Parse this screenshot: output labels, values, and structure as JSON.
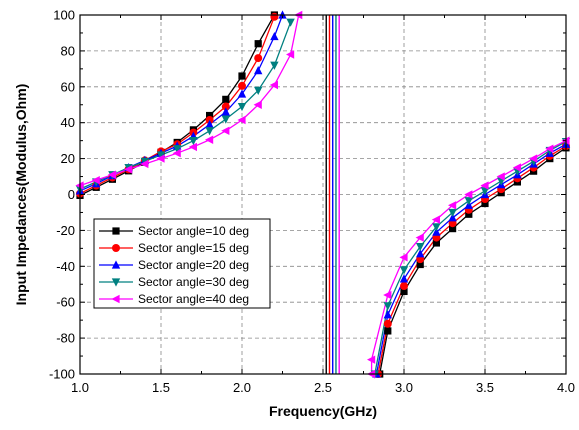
{
  "chart_data": {
    "type": "line",
    "xlabel": "Frequency(GHz)",
    "ylabel": "Input Impedances(Modulus,Ohm)",
    "xlim": [
      1.0,
      4.0
    ],
    "ylim": [
      -100,
      100
    ],
    "xticks": [
      1.0,
      1.5,
      2.0,
      2.5,
      3.0,
      3.5,
      4.0
    ],
    "xtick_labels": [
      "1.0",
      "1.5",
      "2.0",
      "2.5",
      "3.0",
      "3.5",
      "4.0"
    ],
    "yticks": [
      -100,
      -80,
      -60,
      -40,
      -20,
      0,
      20,
      40,
      60,
      80,
      100
    ],
    "ytick_labels": [
      "-100",
      "-80",
      "-60",
      "-40",
      "-20",
      "0",
      "20",
      "40",
      "60",
      "80",
      "100"
    ],
    "grid": "dashed",
    "legend_position": "lower-left",
    "series": [
      {
        "name": "Sector angle=10 deg",
        "color": "#000000",
        "marker": "square",
        "resonance_ghz": 2.52,
        "low_branch": [
          [
            1.0,
            -0.5
          ],
          [
            1.1,
            4
          ],
          [
            1.2,
            8.5
          ],
          [
            1.3,
            13.2
          ],
          [
            1.4,
            18
          ],
          [
            1.5,
            23.5
          ],
          [
            1.6,
            29
          ],
          [
            1.7,
            36
          ],
          [
            1.8,
            44
          ],
          [
            1.9,
            53
          ],
          [
            2.0,
            66
          ],
          [
            2.1,
            84
          ],
          [
            2.2,
            100
          ]
        ],
        "high_branch": [
          [
            2.85,
            -100
          ],
          [
            2.9,
            -76
          ],
          [
            3.0,
            -54
          ],
          [
            3.1,
            -39
          ],
          [
            3.2,
            -27
          ],
          [
            3.3,
            -19
          ],
          [
            3.4,
            -11
          ],
          [
            3.5,
            -5
          ],
          [
            3.6,
            1
          ],
          [
            3.7,
            7
          ],
          [
            3.8,
            13
          ],
          [
            3.9,
            20
          ],
          [
            4.0,
            26
          ]
        ]
      },
      {
        "name": "Sector angle=15 deg",
        "color": "#ff0000",
        "marker": "circle",
        "resonance_ghz": 2.54,
        "low_branch": [
          [
            1.0,
            0.5
          ],
          [
            1.1,
            5
          ],
          [
            1.2,
            9.5
          ],
          [
            1.3,
            14
          ],
          [
            1.4,
            19
          ],
          [
            1.5,
            24
          ],
          [
            1.6,
            28
          ],
          [
            1.7,
            34.5
          ],
          [
            1.8,
            41.5
          ],
          [
            1.9,
            49
          ],
          [
            2.0,
            60.5
          ],
          [
            2.1,
            76
          ],
          [
            2.2,
            99
          ]
        ],
        "high_branch": [
          [
            2.84,
            -100
          ],
          [
            2.9,
            -72
          ],
          [
            3.0,
            -51
          ],
          [
            3.1,
            -36
          ],
          [
            3.2,
            -24
          ],
          [
            3.3,
            -16
          ],
          [
            3.4,
            -8.5
          ],
          [
            3.5,
            -2.5
          ],
          [
            3.6,
            3
          ],
          [
            3.7,
            9
          ],
          [
            3.8,
            15
          ],
          [
            3.9,
            21.5
          ],
          [
            4.0,
            27
          ]
        ]
      },
      {
        "name": "Sector angle=20 deg",
        "color": "#0000ff",
        "marker": "triangle-up",
        "resonance_ghz": 2.56,
        "low_branch": [
          [
            1.0,
            2
          ],
          [
            1.1,
            6
          ],
          [
            1.2,
            10.5
          ],
          [
            1.3,
            15
          ],
          [
            1.4,
            19
          ],
          [
            1.5,
            23
          ],
          [
            1.6,
            27
          ],
          [
            1.7,
            32.5
          ],
          [
            1.8,
            39
          ],
          [
            1.9,
            46
          ],
          [
            2.0,
            56
          ],
          [
            2.1,
            69
          ],
          [
            2.2,
            88
          ],
          [
            2.25,
            100
          ]
        ],
        "high_branch": [
          [
            2.83,
            -100
          ],
          [
            2.9,
            -67
          ],
          [
            3.0,
            -47
          ],
          [
            3.1,
            -33
          ],
          [
            3.2,
            -21
          ],
          [
            3.3,
            -13
          ],
          [
            3.4,
            -6
          ],
          [
            3.5,
            0
          ],
          [
            3.6,
            5.5
          ],
          [
            3.7,
            11
          ],
          [
            3.8,
            17
          ],
          [
            3.9,
            23
          ],
          [
            4.0,
            28
          ]
        ]
      },
      {
        "name": "Sector angle=30 deg",
        "color": "#008080",
        "marker": "triangle-down",
        "resonance_ghz": 2.58,
        "low_branch": [
          [
            1.0,
            3
          ],
          [
            1.1,
            7
          ],
          [
            1.2,
            11
          ],
          [
            1.3,
            15
          ],
          [
            1.4,
            18.5
          ],
          [
            1.5,
            22
          ],
          [
            1.6,
            25.5
          ],
          [
            1.7,
            30
          ],
          [
            1.8,
            35.5
          ],
          [
            1.9,
            42
          ],
          [
            2.0,
            49
          ],
          [
            2.1,
            58
          ],
          [
            2.2,
            72
          ],
          [
            2.3,
            96
          ]
        ],
        "high_branch": [
          [
            2.82,
            -100
          ],
          [
            2.9,
            -62
          ],
          [
            3.0,
            -42
          ],
          [
            3.1,
            -29
          ],
          [
            3.2,
            -18
          ],
          [
            3.3,
            -10
          ],
          [
            3.4,
            -3.5
          ],
          [
            3.5,
            2
          ],
          [
            3.6,
            7.5
          ],
          [
            3.7,
            13
          ],
          [
            3.8,
            18.5
          ],
          [
            3.9,
            24.5
          ],
          [
            4.0,
            29.5
          ]
        ]
      },
      {
        "name": "Sector angle=40 deg",
        "color": "#ff00ff",
        "marker": "triangle-left",
        "resonance_ghz": 2.6,
        "low_branch": [
          [
            1.0,
            5
          ],
          [
            1.1,
            8
          ],
          [
            1.2,
            11
          ],
          [
            1.3,
            14
          ],
          [
            1.4,
            17
          ],
          [
            1.5,
            20
          ],
          [
            1.6,
            23
          ],
          [
            1.7,
            26.5
          ],
          [
            1.8,
            30.5
          ],
          [
            1.9,
            35.5
          ],
          [
            2.0,
            41.5
          ],
          [
            2.1,
            50
          ],
          [
            2.2,
            61
          ],
          [
            2.3,
            78
          ],
          [
            2.35,
            100
          ]
        ],
        "high_branch": [
          [
            2.8,
            -100
          ],
          [
            2.8,
            -92
          ],
          [
            2.9,
            -56
          ],
          [
            3.0,
            -35
          ],
          [
            3.1,
            -24
          ],
          [
            3.2,
            -14
          ],
          [
            3.3,
            -6
          ],
          [
            3.4,
            0
          ],
          [
            3.5,
            5
          ],
          [
            3.6,
            10
          ],
          [
            3.7,
            15
          ],
          [
            3.8,
            20
          ],
          [
            3.9,
            25.5
          ],
          [
            4.0,
            30
          ]
        ]
      }
    ]
  }
}
